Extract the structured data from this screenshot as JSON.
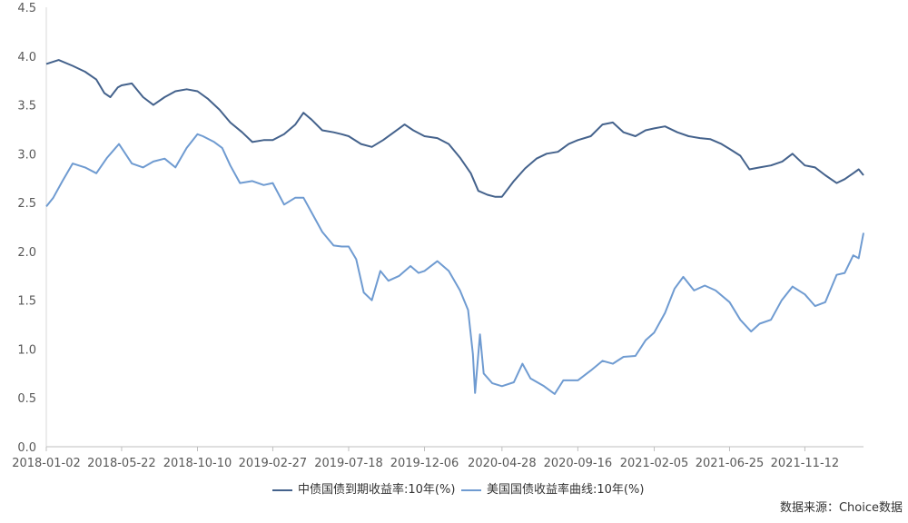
{
  "chart_data": {
    "type": "line",
    "title": "",
    "xlabel": "",
    "ylabel": "",
    "ylim": [
      0.0,
      4.5
    ],
    "yticks": [
      "0.0",
      "0.5",
      "1.0",
      "1.5",
      "2.0",
      "2.5",
      "3.0",
      "3.5",
      "4.0",
      "4.5"
    ],
    "xticks": [
      "2018-01-02",
      "2018-05-22",
      "2018-10-10",
      "2019-02-27",
      "2019-07-18",
      "2019-12-06",
      "2020-04-28",
      "2020-09-16",
      "2021-02-05",
      "2021-06-25",
      "2021-11-12"
    ],
    "xlim": [
      "2018-01-02",
      "2022-03-01"
    ],
    "legend_position": "bottom",
    "grid": false,
    "series": [
      {
        "name": "中债国债到期收益率:10年(%)",
        "color": "#44628c",
        "x": [
          "2018-01-02",
          "2018-01-25",
          "2018-02-20",
          "2018-03-15",
          "2018-04-05",
          "2018-04-20",
          "2018-05-01",
          "2018-05-15",
          "2018-05-22",
          "2018-06-10",
          "2018-07-01",
          "2018-07-20",
          "2018-08-10",
          "2018-08-30",
          "2018-09-20",
          "2018-10-10",
          "2018-10-30",
          "2018-11-20",
          "2018-12-10",
          "2019-01-01",
          "2019-01-20",
          "2019-02-10",
          "2019-02-27",
          "2019-03-20",
          "2019-04-10",
          "2019-04-25",
          "2019-05-10",
          "2019-05-30",
          "2019-06-20",
          "2019-07-05",
          "2019-07-18",
          "2019-08-10",
          "2019-08-30",
          "2019-09-20",
          "2019-10-10",
          "2019-10-30",
          "2019-11-15",
          "2019-12-06",
          "2019-12-30",
          "2020-01-20",
          "2020-02-10",
          "2020-03-01",
          "2020-03-15",
          "2020-04-01",
          "2020-04-15",
          "2020-04-28",
          "2020-05-20",
          "2020-06-10",
          "2020-07-01",
          "2020-07-20",
          "2020-08-10",
          "2020-08-30",
          "2020-09-16",
          "2020-10-10",
          "2020-11-01",
          "2020-11-20",
          "2020-12-10",
          "2021-01-01",
          "2021-01-20",
          "2021-02-05",
          "2021-02-25",
          "2021-03-20",
          "2021-04-10",
          "2021-05-01",
          "2021-05-20",
          "2021-06-10",
          "2021-06-25",
          "2021-07-15",
          "2021-08-01",
          "2021-08-20",
          "2021-09-10",
          "2021-10-01",
          "2021-10-20",
          "2021-11-12",
          "2021-12-01",
          "2021-12-20",
          "2022-01-10",
          "2022-01-25",
          "2022-02-10",
          "2022-02-20",
          "2022-03-01"
        ],
        "values": [
          3.92,
          3.96,
          3.9,
          3.84,
          3.76,
          3.62,
          3.58,
          3.68,
          3.7,
          3.72,
          3.58,
          3.5,
          3.58,
          3.64,
          3.66,
          3.64,
          3.56,
          3.45,
          3.32,
          3.22,
          3.12,
          3.14,
          3.14,
          3.2,
          3.3,
          3.42,
          3.35,
          3.24,
          3.22,
          3.2,
          3.18,
          3.1,
          3.07,
          3.14,
          3.22,
          3.3,
          3.24,
          3.18,
          3.16,
          3.1,
          2.96,
          2.8,
          2.62,
          2.58,
          2.56,
          2.56,
          2.72,
          2.85,
          2.95,
          3.0,
          3.02,
          3.1,
          3.14,
          3.18,
          3.3,
          3.32,
          3.22,
          3.18,
          3.24,
          3.26,
          3.28,
          3.22,
          3.18,
          3.16,
          3.15,
          3.1,
          3.05,
          2.98,
          2.84,
          2.86,
          2.88,
          2.92,
          3.0,
          2.88,
          2.86,
          2.78,
          2.7,
          2.74,
          2.8,
          2.84,
          2.78
        ]
      },
      {
        "name": "美国国债收益率曲线:10年(%)",
        "color": "#6f9bd1",
        "x": [
          "2018-01-02",
          "2018-01-15",
          "2018-02-01",
          "2018-02-20",
          "2018-03-15",
          "2018-04-05",
          "2018-04-25",
          "2018-05-17",
          "2018-05-22",
          "2018-06-10",
          "2018-07-01",
          "2018-07-20",
          "2018-08-10",
          "2018-08-30",
          "2018-09-20",
          "2018-10-10",
          "2018-10-20",
          "2018-11-10",
          "2018-11-25",
          "2018-12-10",
          "2018-12-28",
          "2019-01-20",
          "2019-02-10",
          "2019-02-27",
          "2019-03-20",
          "2019-04-10",
          "2019-04-25",
          "2019-05-10",
          "2019-05-30",
          "2019-06-20",
          "2019-07-05",
          "2019-07-18",
          "2019-08-01",
          "2019-08-15",
          "2019-08-30",
          "2019-09-15",
          "2019-09-30",
          "2019-10-20",
          "2019-11-10",
          "2019-11-25",
          "2019-12-06",
          "2019-12-30",
          "2020-01-20",
          "2020-02-10",
          "2020-02-25",
          "2020-03-05",
          "2020-03-09",
          "2020-03-18",
          "2020-03-25",
          "2020-04-10",
          "2020-04-28",
          "2020-05-20",
          "2020-06-05",
          "2020-06-20",
          "2020-07-15",
          "2020-08-04",
          "2020-08-20",
          "2020-09-16",
          "2020-10-10",
          "2020-11-01",
          "2020-11-20",
          "2020-12-10",
          "2021-01-01",
          "2021-01-20",
          "2021-02-05",
          "2021-02-25",
          "2021-03-15",
          "2021-03-31",
          "2021-04-20",
          "2021-05-10",
          "2021-05-30",
          "2021-06-25",
          "2021-07-15",
          "2021-08-04",
          "2021-08-20",
          "2021-09-10",
          "2021-09-30",
          "2021-10-20",
          "2021-11-12",
          "2021-12-01",
          "2021-12-20",
          "2022-01-10",
          "2022-01-25",
          "2022-02-10",
          "2022-02-20",
          "2022-03-01"
        ],
        "values": [
          2.46,
          2.55,
          2.72,
          2.9,
          2.86,
          2.8,
          2.96,
          3.1,
          3.06,
          2.9,
          2.86,
          2.92,
          2.95,
          2.86,
          3.06,
          3.2,
          3.18,
          3.12,
          3.06,
          2.88,
          2.7,
          2.72,
          2.68,
          2.7,
          2.48,
          2.55,
          2.55,
          2.4,
          2.2,
          2.06,
          2.05,
          2.05,
          1.92,
          1.58,
          1.5,
          1.8,
          1.7,
          1.75,
          1.85,
          1.78,
          1.8,
          1.9,
          1.8,
          1.6,
          1.4,
          0.95,
          0.55,
          1.15,
          0.75,
          0.65,
          0.62,
          0.66,
          0.85,
          0.7,
          0.62,
          0.54,
          0.68,
          0.68,
          0.78,
          0.88,
          0.85,
          0.92,
          0.93,
          1.09,
          1.17,
          1.37,
          1.62,
          1.74,
          1.6,
          1.65,
          1.6,
          1.48,
          1.3,
          1.18,
          1.26,
          1.3,
          1.5,
          1.64,
          1.56,
          1.44,
          1.48,
          1.76,
          1.78,
          1.96,
          1.93,
          2.19
        ]
      }
    ]
  },
  "source_text": "数据来源：Choice数据"
}
